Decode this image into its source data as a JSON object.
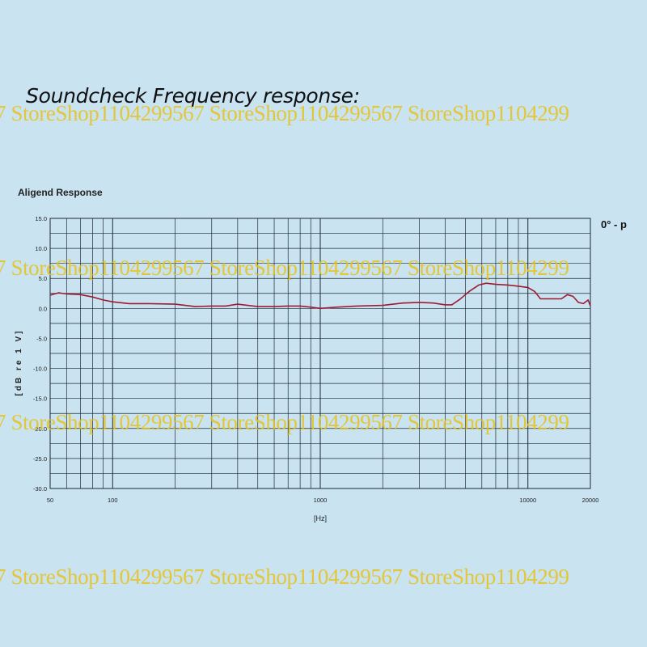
{
  "heading": "Soundcheck Frequency response:",
  "watermark": "7 StoreShop1104299567 StoreShop1104299567 StoreShop1104299",
  "chart_data": {
    "type": "line",
    "title": "Aligend Response",
    "xlabel": "[Hz]",
    "ylabel": "[dB re 1 V]",
    "annotation": "0° - p",
    "xscale": "log",
    "xlim": [
      50,
      20000
    ],
    "ylim": [
      -30,
      15
    ],
    "x_ticks": [
      {
        "value": 50,
        "label": "50"
      },
      {
        "value": 100,
        "label": "100"
      },
      {
        "value": 1000,
        "label": "1000"
      },
      {
        "value": 10000,
        "label": "10000"
      },
      {
        "value": 20000,
        "label": "20000"
      }
    ],
    "y_ticks": [
      {
        "value": 15,
        "label": "15.0"
      },
      {
        "value": 10,
        "label": "10.0"
      },
      {
        "value": 5,
        "label": "5.0"
      },
      {
        "value": 0,
        "label": "0.0"
      },
      {
        "value": -5,
        "label": "-5.0"
      },
      {
        "value": -10,
        "label": "-10.0"
      },
      {
        "value": -15,
        "label": "-15.0"
      },
      {
        "value": -20,
        "label": "-20.0"
      },
      {
        "value": -25,
        "label": "-25.0"
      },
      {
        "value": -30,
        "label": "-30.0"
      }
    ],
    "grid": true,
    "legend": "none",
    "colors": {
      "line": "#9e1b32",
      "grid": "#1f2a36",
      "plot_bg": "#c9e3f1"
    },
    "series": [
      {
        "x": [
          50,
          55,
          60,
          70,
          80,
          90,
          100,
          120,
          150,
          200,
          250,
          300,
          350,
          400,
          500,
          600,
          700,
          800,
          900,
          1000,
          1200,
          1500,
          2000,
          2500,
          3000,
          3500,
          4000,
          4300,
          4700,
          5200,
          5800,
          6300,
          7000,
          8000,
          9000,
          10000,
          10800,
          11500,
          13000,
          14500,
          15500,
          16500,
          17500,
          18500,
          19500,
          20000
        ],
        "y": [
          2.2,
          2.6,
          2.4,
          2.3,
          1.9,
          1.4,
          1.1,
          0.8,
          0.8,
          0.7,
          0.3,
          0.4,
          0.4,
          0.7,
          0.3,
          0.3,
          0.4,
          0.4,
          0.2,
          0.0,
          0.2,
          0.4,
          0.5,
          0.9,
          1.0,
          0.9,
          0.6,
          0.6,
          1.5,
          2.8,
          3.9,
          4.2,
          4.0,
          3.9,
          3.7,
          3.5,
          2.8,
          1.6,
          1.6,
          1.6,
          2.3,
          2.0,
          1.0,
          0.8,
          1.4,
          0.4
        ]
      }
    ]
  }
}
